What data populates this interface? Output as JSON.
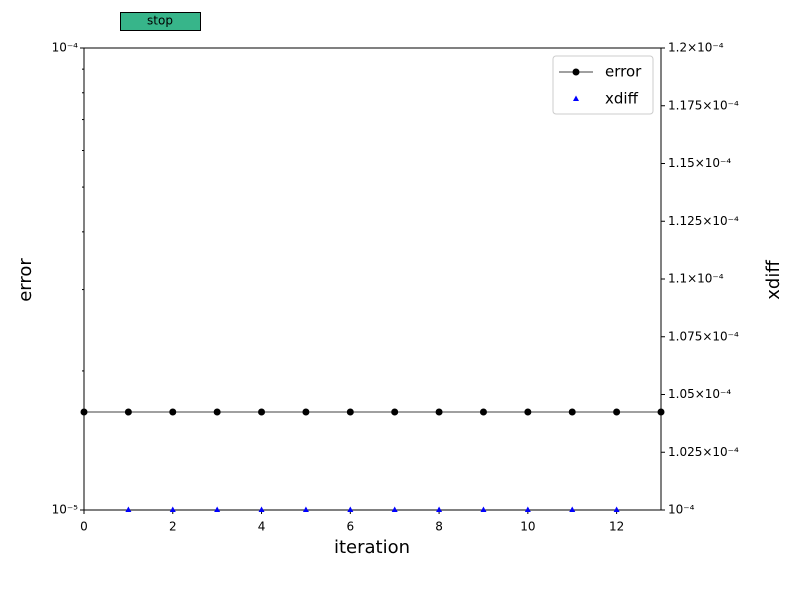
{
  "button": {
    "label": "stop",
    "color": "#37b58a"
  },
  "chart_data": {
    "type": "line",
    "x_label": "iteration",
    "y_label": "error",
    "y2_label": "xdiff",
    "xlim": [
      0,
      13
    ],
    "xticks": [
      0,
      2,
      4,
      6,
      8,
      10,
      12
    ],
    "ylim": [
      1e-05,
      0.0001
    ],
    "log_y": true,
    "yticks": [
      {
        "value": 1e-05,
        "label": "10⁻⁵"
      },
      {
        "value": 0.0001,
        "label": "10⁻⁴"
      }
    ],
    "yminorticks": [
      2e-05,
      3e-05,
      4e-05,
      5e-05,
      6e-05,
      7e-05,
      8e-05,
      9e-05
    ],
    "y2lim": [
      0.0001,
      0.00012
    ],
    "y2ticks": [
      {
        "value": 0.0001,
        "label": "10⁻⁴"
      },
      {
        "value": 0.0001025,
        "label": "1.025×10⁻⁴"
      },
      {
        "value": 0.000105,
        "label": "1.05×10⁻⁴"
      },
      {
        "value": 0.0001075,
        "label": "1.075×10⁻⁴"
      },
      {
        "value": 0.00011,
        "label": "1.1×10⁻⁴"
      },
      {
        "value": 0.0001125,
        "label": "1.125×10⁻⁴"
      },
      {
        "value": 0.000115,
        "label": "1.15×10⁻⁴"
      },
      {
        "value": 0.0001175,
        "label": "1.175×10⁻⁴"
      },
      {
        "value": 0.00012,
        "label": "1.2×10⁻⁴"
      }
    ],
    "legend": "upper right",
    "series": [
      {
        "name": "error",
        "color": "#000000",
        "marker": "circle",
        "line": true,
        "x": [
          0,
          1,
          2,
          3,
          4,
          5,
          6,
          7,
          8,
          9,
          10,
          11,
          12,
          13
        ],
        "values": [
          1.63e-05,
          1.63e-05,
          1.63e-05,
          1.63e-05,
          1.63e-05,
          1.63e-05,
          1.63e-05,
          1.63e-05,
          1.63e-05,
          1.63e-05,
          1.63e-05,
          1.63e-05,
          1.63e-05,
          1.63e-05
        ]
      },
      {
        "name": "xdiff",
        "color": "#0000ff",
        "marker": "triangle",
        "line": false,
        "axis": "y2",
        "x": [
          1,
          2,
          3,
          4,
          5,
          6,
          7,
          8,
          9,
          10,
          11,
          12
        ],
        "values": [
          0.0001,
          0.0001,
          0.0001,
          0.0001,
          0.0001,
          0.0001,
          0.0001,
          0.0001,
          0.0001,
          0.0001,
          0.0001,
          0.0001
        ]
      }
    ]
  }
}
